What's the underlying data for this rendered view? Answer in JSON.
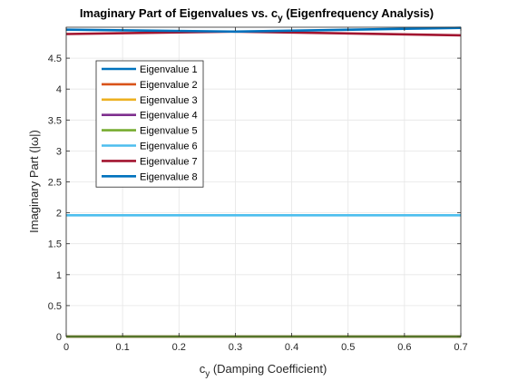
{
  "chart_data": {
    "type": "line",
    "title_main": "Imaginary Part of Eigenvalues vs. c",
    "title_sub": "y",
    "title_tail": " (Eigenfrequency Analysis)",
    "xlabel_main": "c",
    "xlabel_sub": "y",
    "xlabel_tail": " (Damping Coefficient)",
    "ylabel": "Imaginary Part (|ω|)",
    "xlim": [
      0,
      0.7
    ],
    "ylim": [
      0,
      5
    ],
    "xticks": [
      "0",
      "0.1",
      "0.2",
      "0.3",
      "0.4",
      "0.5",
      "0.6",
      "0.7"
    ],
    "yticks": [
      "0",
      "0.5",
      "1",
      "1.5",
      "2",
      "2.5",
      "3",
      "3.5",
      "4",
      "4.5"
    ],
    "grid": true,
    "legend_position": "upper-left",
    "x": [
      0,
      0.3,
      0.7
    ],
    "series": [
      {
        "name": "Eigenvalue 1",
        "color": "#0072bd",
        "values": [
          0,
          0,
          0
        ]
      },
      {
        "name": "Eigenvalue 2",
        "color": "#d95319",
        "values": [
          0,
          0,
          0
        ]
      },
      {
        "name": "Eigenvalue 3",
        "color": "#edb120",
        "values": [
          0,
          0,
          0
        ]
      },
      {
        "name": "Eigenvalue 4",
        "color": "#7e2f8e",
        "values": [
          0,
          0,
          0
        ]
      },
      {
        "name": "Eigenvalue 5",
        "color": "#77ac30",
        "values": [
          0,
          0,
          0
        ]
      },
      {
        "name": "Eigenvalue 6",
        "color": "#4dbeee",
        "values": [
          1.96,
          1.96,
          1.96
        ]
      },
      {
        "name": "Eigenvalue 7",
        "color": "#a2142f",
        "values": [
          4.89,
          4.93,
          4.87
        ]
      },
      {
        "name": "Eigenvalue 8",
        "color": "#0072bd",
        "values": [
          4.96,
          4.93,
          4.99
        ]
      }
    ]
  }
}
